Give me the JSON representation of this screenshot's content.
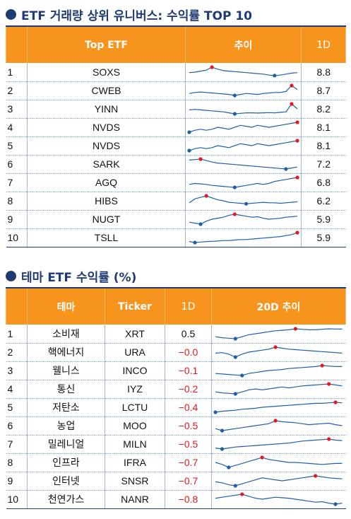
{
  "top_section": {
    "title": "ETF 거래량 상위 유니버스: 수익률 TOP 10",
    "headers": {
      "rank": "",
      "name": "Top ETF",
      "trend": "추이",
      "one_day": "1D"
    },
    "rows": [
      {
        "rank": "1",
        "ticker": "SOXS",
        "one_day": "8.8"
      },
      {
        "rank": "2",
        "ticker": "CWEB",
        "one_day": "8.7"
      },
      {
        "rank": "3",
        "ticker": "YINN",
        "one_day": "8.2"
      },
      {
        "rank": "4",
        "ticker": "NVDS",
        "one_day": "8.1"
      },
      {
        "rank": "5",
        "ticker": "NVDS",
        "one_day": "8.1"
      },
      {
        "rank": "6",
        "ticker": "SARK",
        "one_day": "7.2"
      },
      {
        "rank": "7",
        "ticker": "AGQ",
        "one_day": "6.8"
      },
      {
        "rank": "8",
        "ticker": "HIBS",
        "one_day": "6.2"
      },
      {
        "rank": "9",
        "ticker": "NUGT",
        "one_day": "5.9"
      },
      {
        "rank": "10",
        "ticker": "TSLL",
        "one_day": "5.9"
      }
    ]
  },
  "theme_section": {
    "title": "테마 ETF 수익률 (%)",
    "headers": {
      "rank": "",
      "theme": "테마",
      "ticker": "Ticker",
      "one_day": "1D",
      "trend": "20D 추이"
    },
    "rows": [
      {
        "rank": "1",
        "theme": "소비재",
        "ticker": "XRT",
        "one_day": "0.5",
        "negative": false
      },
      {
        "rank": "2",
        "theme": "핵에너지",
        "ticker": "URA",
        "one_day": "−0.0",
        "negative": true
      },
      {
        "rank": "3",
        "theme": "웰니스",
        "ticker": "INCO",
        "one_day": "−0.1",
        "negative": true
      },
      {
        "rank": "4",
        "theme": "통신",
        "ticker": "IYZ",
        "one_day": "−0.2",
        "negative": true
      },
      {
        "rank": "5",
        "theme": "저탄소",
        "ticker": "LCTU",
        "one_day": "−0.4",
        "negative": true
      },
      {
        "rank": "6",
        "theme": "농업",
        "ticker": "MOO",
        "one_day": "−0.5",
        "negative": true
      },
      {
        "rank": "7",
        "theme": "밀레니얼",
        "ticker": "MILN",
        "one_day": "−0.5",
        "negative": true
      },
      {
        "rank": "8",
        "theme": "인프라",
        "ticker": "IFRA",
        "one_day": "−0.7",
        "negative": true
      },
      {
        "rank": "9",
        "theme": "인터넷",
        "ticker": "SNSR",
        "one_day": "−0.7",
        "negative": true
      },
      {
        "rank": "10",
        "theme": "천연가스",
        "ticker": "NANR",
        "one_day": "−0.8",
        "negative": true
      }
    ]
  },
  "sparklines": {
    "line_color": "#1f5fa8",
    "max_marker_color": "#e8161f",
    "min_marker_color": "#1f5fa8",
    "top": [
      [
        0.45,
        0.5,
        0.6,
        0.7,
        1.0,
        0.8,
        0.65,
        0.6,
        0.55,
        0.5,
        0.45,
        0.4,
        0.35,
        0.3,
        0.2,
        0.15,
        0.2,
        0.3,
        0.4,
        0.45
      ],
      [
        0.2,
        0.3,
        0.35,
        0.3,
        0.25,
        0.2,
        0.15,
        0.1,
        0.0,
        0.1,
        0.2,
        0.15,
        0.1,
        0.2,
        0.25,
        0.3,
        0.3,
        0.4,
        1.0,
        0.6
      ],
      [
        0.4,
        0.45,
        0.4,
        0.35,
        0.3,
        0.25,
        0.2,
        0.1,
        0.0,
        0.05,
        0.1,
        0.1,
        0.08,
        0.1,
        0.12,
        0.1,
        0.15,
        0.2,
        1.0,
        0.5
      ],
      [
        0.0,
        0.2,
        0.3,
        0.2,
        0.3,
        0.5,
        0.4,
        0.3,
        0.5,
        0.7,
        0.6,
        0.5,
        0.7,
        0.6,
        0.5,
        0.6,
        0.7,
        0.8,
        0.9,
        1.0
      ],
      [
        0.0,
        0.2,
        0.3,
        0.2,
        0.3,
        0.5,
        0.4,
        0.3,
        0.5,
        0.7,
        0.6,
        0.5,
        0.7,
        0.6,
        0.5,
        0.6,
        0.7,
        0.8,
        0.9,
        1.0
      ],
      [
        0.9,
        0.95,
        1.0,
        0.85,
        0.7,
        0.6,
        0.55,
        0.5,
        0.45,
        0.4,
        0.35,
        0.3,
        0.25,
        0.2,
        0.15,
        0.1,
        0.05,
        0.0,
        0.1,
        0.2
      ],
      [
        0.3,
        0.4,
        0.35,
        0.3,
        0.2,
        0.15,
        0.1,
        0.05,
        0.0,
        0.1,
        0.2,
        0.3,
        0.4,
        0.3,
        0.4,
        0.6,
        0.7,
        0.8,
        0.9,
        1.0
      ],
      [
        0.3,
        0.7,
        0.85,
        1.0,
        0.8,
        0.6,
        0.5,
        0.35,
        0.3,
        0.25,
        0.2,
        0.25,
        0.3,
        0.35,
        0.3,
        0.3,
        0.25,
        0.3,
        0.35,
        0.4
      ],
      [
        0.2,
        0.1,
        0.0,
        0.3,
        0.5,
        0.6,
        0.7,
        0.9,
        1.0,
        0.9,
        0.8,
        0.7,
        0.75,
        0.6,
        0.5,
        0.55,
        0.6,
        0.7,
        0.75,
        0.8
      ],
      [
        0.1,
        0.0,
        0.05,
        0.1,
        0.12,
        0.15,
        0.2,
        0.2,
        0.25,
        0.3,
        0.3,
        0.35,
        0.4,
        0.45,
        0.5,
        0.55,
        0.6,
        0.7,
        0.8,
        1.0
      ]
    ],
    "theme": [
      [
        0.2,
        0.1,
        0.05,
        0.0,
        0.2,
        0.4,
        0.5,
        0.6,
        0.7,
        0.8,
        0.85,
        0.9,
        1.0,
        0.95,
        0.9,
        0.9,
        0.95,
        1.0,
        0.98,
        0.97
      ],
      [
        0.4,
        0.45,
        0.3,
        0.0,
        0.3,
        0.5,
        0.6,
        0.7,
        0.8,
        1.0,
        0.9,
        0.8,
        0.75,
        0.7,
        0.65,
        0.6,
        0.55,
        0.5,
        0.45,
        0.4
      ],
      [
        0.2,
        0.15,
        0.1,
        0.05,
        0.0,
        0.2,
        0.3,
        0.4,
        0.5,
        0.55,
        0.6,
        0.7,
        0.75,
        0.8,
        0.85,
        0.9,
        1.0,
        0.95,
        0.9,
        0.9
      ],
      [
        0.2,
        0.1,
        0.05,
        0.0,
        0.2,
        0.4,
        0.5,
        0.4,
        0.5,
        0.6,
        0.7,
        0.6,
        0.7,
        0.8,
        0.85,
        0.9,
        0.95,
        1.0,
        0.9,
        0.8
      ],
      [
        0.0,
        0.1,
        0.15,
        0.2,
        0.3,
        0.35,
        0.4,
        0.5,
        0.55,
        0.6,
        0.65,
        0.7,
        0.75,
        0.8,
        0.85,
        0.9,
        0.9,
        0.95,
        1.0,
        0.95
      ],
      [
        0.2,
        0.0,
        0.1,
        0.2,
        0.3,
        0.4,
        0.5,
        0.6,
        0.7,
        1.0,
        0.9,
        0.85,
        0.8,
        0.7,
        0.6,
        0.65,
        0.7,
        0.75,
        0.6,
        0.5
      ],
      [
        0.1,
        0.0,
        0.1,
        0.2,
        0.25,
        0.3,
        0.35,
        0.4,
        0.45,
        0.5,
        0.55,
        0.6,
        0.7,
        0.8,
        0.85,
        0.9,
        0.95,
        1.0,
        0.9,
        0.85
      ],
      [
        0.5,
        0.3,
        0.0,
        0.2,
        0.4,
        0.6,
        0.8,
        1.0,
        0.8,
        0.7,
        0.6,
        0.5,
        0.5,
        0.45,
        0.4,
        0.35,
        0.3,
        0.35,
        0.4,
        0.4
      ],
      [
        0.4,
        0.3,
        0.1,
        0.0,
        0.2,
        0.4,
        0.6,
        0.8,
        0.7,
        0.6,
        0.5,
        0.6,
        0.7,
        0.8,
        0.9,
        1.0,
        0.9,
        0.8,
        0.75,
        0.7
      ],
      [
        0.6,
        0.7,
        0.8,
        0.9,
        1.0,
        0.8,
        0.6,
        0.5,
        0.6,
        0.7,
        0.65,
        0.6,
        0.5,
        0.4,
        0.3,
        0.2,
        0.25,
        0.1,
        0.0,
        0.1
      ]
    ]
  }
}
